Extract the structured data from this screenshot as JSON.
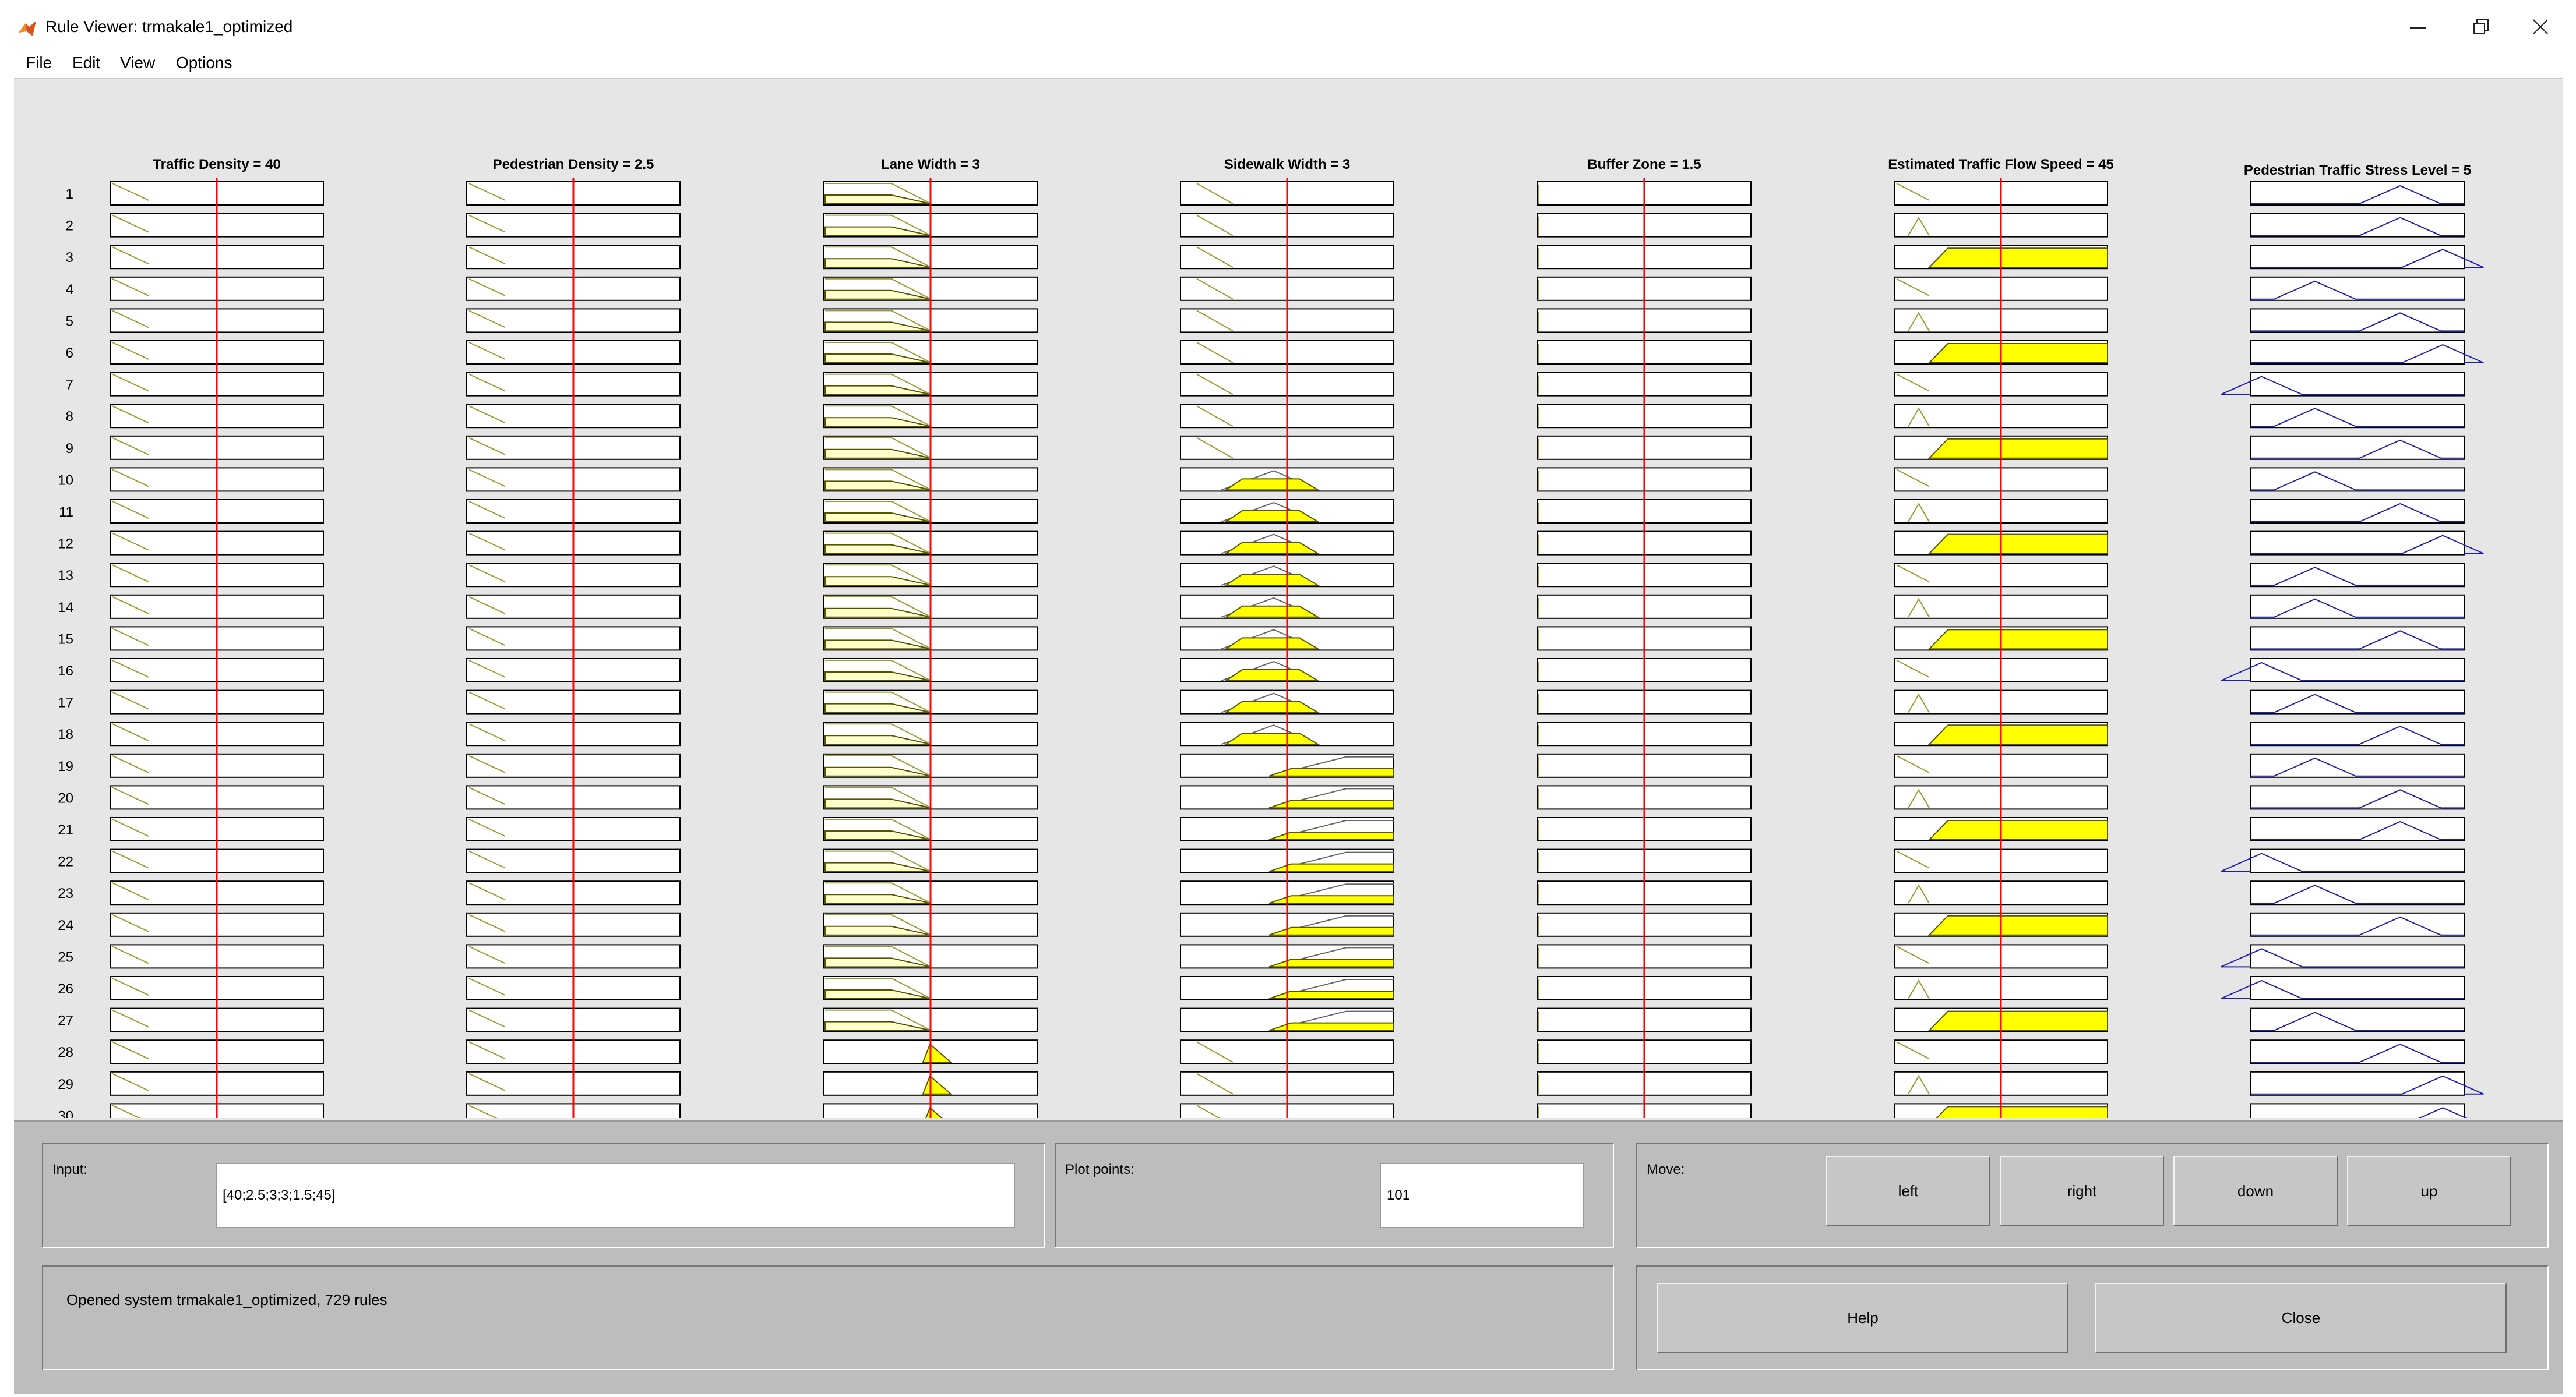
{
  "window": {
    "title": "Rule Viewer: trmakale1_optimized",
    "controls": [
      "minimize-icon",
      "restore-icon",
      "close-icon"
    ]
  },
  "menu": [
    "File",
    "Edit",
    "View",
    "Options"
  ],
  "colors": {
    "background": "#e6e6e6",
    "panel": "#bdbdbd",
    "input_mf": "#9b9b2e",
    "output_mf": "#1f1fb4",
    "fired_fill": "#ffff00",
    "value_line": "#ff0000"
  },
  "inputs": [
    {
      "name": "Traffic Density",
      "value": 40
    },
    {
      "name": "Pedestrian Density",
      "value": 2.5
    },
    {
      "name": "Lane Width",
      "value": 3
    },
    {
      "name": "Sidewalk Width",
      "value": 3
    },
    {
      "name": "Buffer Zone",
      "value": 1.5
    },
    {
      "name": "Estimated Traffic Flow Speed",
      "value": 45
    }
  ],
  "input_titles": [
    "Traffic Density = 40",
    "Pedestrian Density = 2.5",
    "Lane Width = 3",
    "Sidewalk Width = 3",
    "Buffer Zone = 1.5",
    "Estimated Traffic Flow Speed = 45"
  ],
  "output": {
    "name": "Pedestrian Traffic Stress Level",
    "value": 5,
    "title": "Pedestrian Traffic Stress Level = 5"
  },
  "rule_numbers": [
    "1",
    "2",
    "3",
    "4",
    "5",
    "6",
    "7",
    "8",
    "9",
    "10",
    "11",
    "12",
    "13",
    "14",
    "15",
    "16",
    "17",
    "18",
    "19",
    "20",
    "21",
    "22",
    "23",
    "24",
    "25",
    "26",
    "27",
    "28",
    "29",
    "30"
  ],
  "rules_mf": {
    "traffic_density": [
      "low",
      "low",
      "low",
      "low",
      "low",
      "low",
      "low",
      "low",
      "low",
      "low",
      "low",
      "low",
      "low",
      "low",
      "low",
      "low",
      "low",
      "low",
      "low",
      "low",
      "low",
      "low",
      "low",
      "low",
      "low",
      "low",
      "low",
      "low",
      "low",
      "low"
    ],
    "pedestrian_density": [
      "low",
      "low",
      "low",
      "low",
      "low",
      "low",
      "low",
      "low",
      "low",
      "low",
      "low",
      "low",
      "low",
      "low",
      "low",
      "low",
      "low",
      "low",
      "low",
      "low",
      "low",
      "low",
      "low",
      "low",
      "low",
      "low",
      "low",
      "low",
      "low",
      "low"
    ],
    "lane_width": [
      "narrow",
      "narrow",
      "narrow",
      "narrow",
      "narrow",
      "narrow",
      "narrow",
      "narrow",
      "narrow",
      "narrow",
      "narrow",
      "narrow",
      "narrow",
      "narrow",
      "narrow",
      "narrow",
      "narrow",
      "narrow",
      "narrow",
      "narrow",
      "narrow",
      "narrow",
      "narrow",
      "narrow",
      "narrow",
      "narrow",
      "narrow",
      "medium",
      "medium",
      "medium"
    ],
    "sidewalk_width": [
      "narrow",
      "narrow",
      "narrow",
      "narrow",
      "narrow",
      "narrow",
      "narrow",
      "narrow",
      "narrow",
      "medium",
      "medium",
      "medium",
      "medium",
      "medium",
      "medium",
      "medium",
      "medium",
      "medium",
      "wide",
      "wide",
      "wide",
      "wide",
      "wide",
      "wide",
      "wide",
      "wide",
      "wide",
      "narrow",
      "narrow",
      "narrow"
    ],
    "buffer_zone": [
      "none",
      "none",
      "none",
      "none",
      "none",
      "none",
      "none",
      "none",
      "none",
      "none",
      "none",
      "none",
      "none",
      "none",
      "none",
      "none",
      "none",
      "none",
      "none",
      "none",
      "none",
      "none",
      "none",
      "none",
      "none",
      "none",
      "none",
      "none",
      "none",
      "none"
    ],
    "traffic_speed": [
      "low",
      "medium",
      "high",
      "low",
      "medium",
      "high",
      "low",
      "medium",
      "high",
      "low",
      "medium",
      "high",
      "low",
      "medium",
      "high",
      "low",
      "medium",
      "high",
      "low",
      "medium",
      "high",
      "low",
      "medium",
      "high",
      "low",
      "medium",
      "high",
      "low",
      "medium",
      "high"
    ],
    "stress_level": [
      3,
      3,
      4,
      1,
      3,
      4,
      0,
      1,
      3,
      1,
      3,
      4,
      1,
      1,
      3,
      0,
      1,
      3,
      1,
      3,
      3,
      0,
      1,
      3,
      0,
      0,
      1,
      3,
      4,
      4
    ]
  },
  "panel": {
    "input_label": "Input:",
    "input_value": "[40;2.5;3;3;1.5;45]",
    "plot_points_label": "Plot points:",
    "plot_points_value": "101",
    "move_label": "Move:",
    "move_buttons": [
      "left",
      "right",
      "down",
      "up"
    ],
    "status": "Opened system trmakale1_optimized, 729 rules",
    "help_label": "Help",
    "close_label": "Close"
  }
}
